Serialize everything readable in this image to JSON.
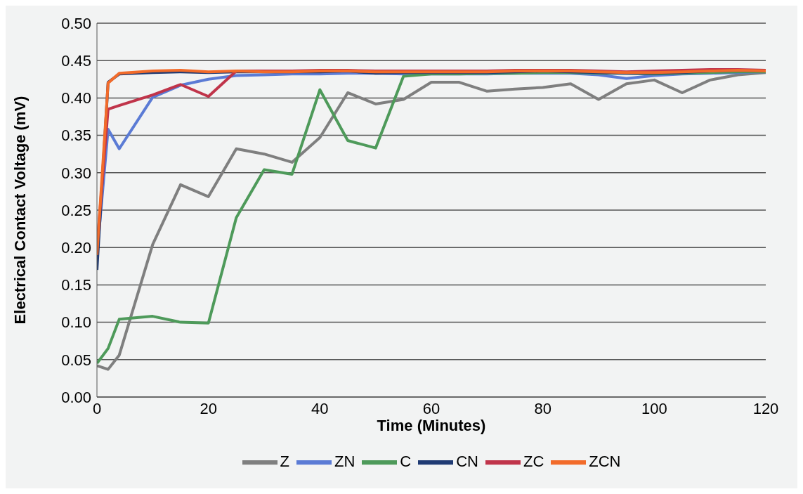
{
  "chart_data": {
    "type": "line",
    "xlabel": "Time (Minutes)",
    "ylabel": "Electrical Contact Voltage (mV)",
    "x": [
      0,
      2,
      4,
      10,
      15,
      20,
      25,
      30,
      35,
      40,
      45,
      50,
      55,
      60,
      65,
      70,
      75,
      80,
      85,
      90,
      95,
      100,
      105,
      110,
      115,
      120
    ],
    "series": [
      {
        "name": "Z",
        "color": "#7f7f7f",
        "values": [
          0.042,
          0.037,
          0.056,
          0.204,
          0.284,
          0.268,
          0.332,
          0.325,
          0.314,
          0.347,
          0.407,
          0.392,
          0.398,
          0.421,
          0.421,
          0.409,
          0.412,
          0.414,
          0.419,
          0.398,
          0.419,
          0.424,
          0.407,
          0.424,
          0.431,
          0.434
        ]
      },
      {
        "name": "ZN",
        "color": "#5b7bd5",
        "values": [
          0.19,
          0.358,
          0.332,
          0.401,
          0.417,
          0.425,
          0.43,
          0.431,
          0.432,
          0.432,
          0.433,
          0.433,
          0.432,
          0.432,
          0.432,
          0.432,
          0.433,
          0.433,
          0.433,
          0.431,
          0.426,
          0.43,
          0.432,
          0.433,
          0.434,
          0.435
        ]
      },
      {
        "name": "C",
        "color": "#4e9a5a",
        "values": [
          0.045,
          0.065,
          0.104,
          0.108,
          0.1,
          0.099,
          0.24,
          0.304,
          0.298,
          0.411,
          0.343,
          0.333,
          0.429,
          0.432,
          0.432,
          0.433,
          0.433,
          0.434,
          0.434,
          0.433,
          0.433,
          0.432,
          0.433,
          0.434,
          0.435,
          0.435
        ]
      },
      {
        "name": "CN",
        "color": "#1f3a73",
        "values": [
          0.17,
          0.421,
          0.432,
          0.434,
          0.435,
          0.434,
          0.435,
          0.435,
          0.435,
          0.435,
          0.436,
          0.433,
          0.434,
          0.434,
          0.434,
          0.434,
          0.435,
          0.436,
          0.435,
          0.434,
          0.433,
          0.433,
          0.434,
          0.436,
          0.437,
          0.436
        ]
      },
      {
        "name": "ZC",
        "color": "#c0344a",
        "values": [
          0.2,
          0.385,
          0.39,
          0.404,
          0.418,
          0.402,
          0.436,
          0.436,
          0.436,
          0.437,
          0.437,
          0.436,
          0.436,
          0.436,
          0.436,
          0.436,
          0.437,
          0.437,
          0.437,
          0.436,
          0.435,
          0.436,
          0.437,
          0.438,
          0.438,
          0.437
        ]
      },
      {
        "name": "ZCN",
        "color": "#f26b2a",
        "values": [
          0.19,
          0.42,
          0.433,
          0.436,
          0.437,
          0.435,
          0.436,
          0.435,
          0.435,
          0.436,
          0.436,
          0.435,
          0.435,
          0.435,
          0.435,
          0.435,
          0.436,
          0.436,
          0.436,
          0.435,
          0.434,
          0.434,
          0.435,
          0.436,
          0.437,
          0.436
        ]
      }
    ],
    "xlim": [
      0,
      120
    ],
    "xticks": [
      0,
      20,
      40,
      60,
      80,
      100,
      120
    ],
    "ylim": [
      0,
      0.5
    ],
    "yticks": [
      {
        "value": 0,
        "label": "0.00"
      },
      {
        "value": 0.05,
        "label": "0.05"
      },
      {
        "value": 0.1,
        "label": "0.10"
      },
      {
        "value": 0.15,
        "label": "0.15"
      },
      {
        "value": 0.2,
        "label": "0.20"
      },
      {
        "value": 0.25,
        "label": "0.25"
      },
      {
        "value": 0.3,
        "label": "0.30"
      },
      {
        "value": 0.35,
        "label": "0.35"
      },
      {
        "value": 0.4,
        "label": "0.40"
      },
      {
        "value": 0.45,
        "label": "0.45"
      },
      {
        "value": 0.5,
        "label": "0.50"
      }
    ],
    "grid": "y",
    "legend": "bottom",
    "marker": "none",
    "line_style": "solid"
  }
}
